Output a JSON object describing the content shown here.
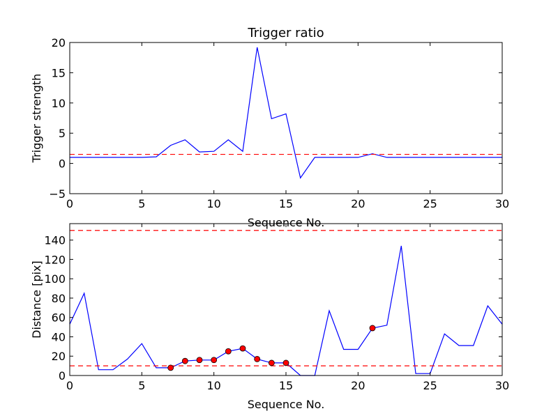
{
  "chart_data": [
    {
      "type": "line",
      "title": "Trigger ratio",
      "xlabel": "Sequence No.",
      "ylabel": "Trigger strength",
      "xlim": [
        0,
        30
      ],
      "ylim": [
        -5,
        20
      ],
      "xticks": [
        0,
        5,
        10,
        15,
        20,
        25,
        30
      ],
      "yticks": [
        -5,
        0,
        5,
        10,
        15,
        20
      ],
      "ytick_labels": [
        "−5",
        "0",
        "5",
        "10",
        "15",
        "20"
      ],
      "grid": false,
      "series": [
        {
          "color": "#0000ff",
          "x": [
            0,
            1,
            2,
            3,
            4,
            5,
            6,
            7,
            8,
            9,
            10,
            11,
            12,
            13,
            14,
            15,
            16,
            17,
            18,
            19,
            20,
            21,
            22,
            23,
            24,
            25,
            26,
            27,
            28,
            29,
            30
          ],
          "values": [
            1.0,
            1.0,
            1.0,
            1.0,
            1.0,
            1.0,
            1.1,
            3.0,
            3.9,
            1.9,
            2.0,
            3.9,
            2.0,
            19.2,
            7.4,
            8.2,
            -2.4,
            1.0,
            1.0,
            1.0,
            1.0,
            1.6,
            1.0,
            1.0,
            1.0,
            1.0,
            1.0,
            1.0,
            1.0,
            1.0,
            1.0
          ]
        }
      ],
      "reference_lines": [
        {
          "y": 1.5,
          "color": "#ff0000",
          "style": "dashed"
        }
      ]
    },
    {
      "type": "line",
      "title": "",
      "xlabel": "Sequence No.",
      "ylabel": "Distance [pix]",
      "xlim": [
        0,
        30
      ],
      "ylim": [
        0,
        157
      ],
      "xticks": [
        0,
        5,
        10,
        15,
        20,
        25,
        30
      ],
      "yticks": [
        0,
        20,
        40,
        60,
        80,
        100,
        120,
        140
      ],
      "grid": false,
      "series": [
        {
          "color": "#0000ff",
          "x": [
            0,
            1,
            2,
            3,
            4,
            5,
            6,
            7,
            8,
            9,
            10,
            11,
            12,
            13,
            14,
            15,
            16,
            17,
            18,
            19,
            20,
            21,
            22,
            23,
            24,
            25,
            26,
            27,
            28,
            29,
            30
          ],
          "values": [
            53,
            85,
            6,
            6,
            17,
            33,
            8,
            8,
            15,
            16,
            16,
            25,
            28,
            17,
            13,
            13,
            0,
            0,
            67,
            27,
            27,
            49,
            52,
            134,
            2,
            2,
            43,
            31,
            31,
            72,
            53
          ]
        }
      ],
      "highlighted_points": {
        "color": "#ff0000",
        "x": [
          7,
          8,
          9,
          10,
          11,
          12,
          13,
          14,
          15,
          21
        ],
        "values": [
          8,
          15,
          16,
          16,
          25,
          28,
          17,
          13,
          13,
          49
        ]
      },
      "reference_lines": [
        {
          "y": 10,
          "color": "#ff0000",
          "style": "dashed"
        },
        {
          "y": 150,
          "color": "#ff0000",
          "style": "dashed"
        }
      ]
    }
  ]
}
